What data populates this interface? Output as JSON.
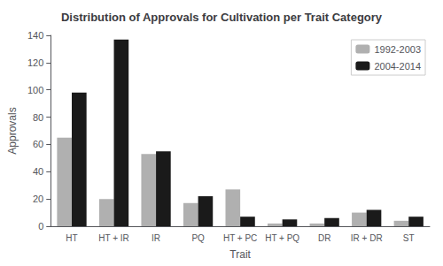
{
  "chart_data": {
    "type": "bar",
    "title": "Distribution of Approvals for Cultivation per Trait Category",
    "xlabel": "Trait",
    "ylabel": "Approvals",
    "categories": [
      "HT",
      "HT + IR",
      "IR",
      "PQ",
      "HT + PC",
      "HT + PQ",
      "DR",
      "IR + DR",
      "ST"
    ],
    "series": [
      {
        "name": "1992-2003",
        "color": "#b0b0b0",
        "values": [
          65,
          20,
          53,
          17,
          27,
          2,
          2,
          10,
          4
        ]
      },
      {
        "name": "2004-2014",
        "color": "#1a1a1a",
        "values": [
          98,
          137,
          55,
          22,
          7,
          5,
          6,
          12,
          7
        ]
      }
    ],
    "ylim": [
      0,
      140
    ],
    "yticks": [
      0,
      20,
      40,
      60,
      80,
      100,
      120,
      140
    ],
    "grid": false,
    "legend": "upper right"
  }
}
